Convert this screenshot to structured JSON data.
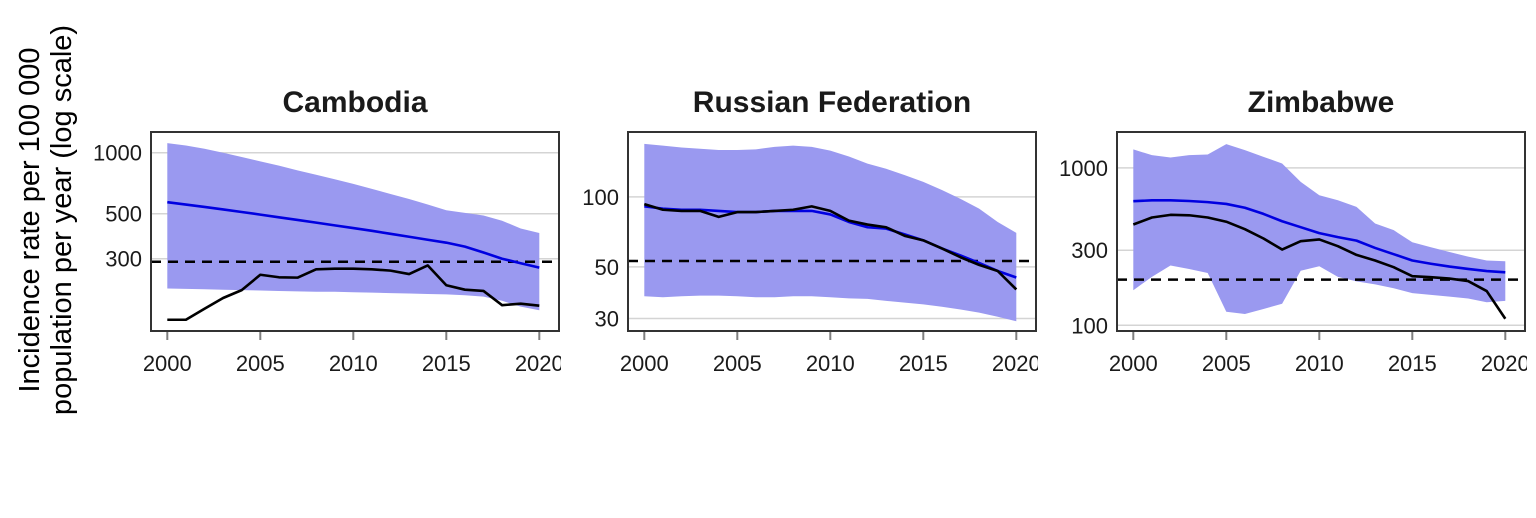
{
  "figure": {
    "y_axis_label_line1": "Incidence rate per 100 000",
    "y_axis_label_line2": "population per year (log scale)",
    "colors": {
      "confidence_band": "#9A99F0",
      "estimate_line": "#0000E0",
      "notification_line": "#000000",
      "target_line": "#000000",
      "gridline": "#D4D4D4",
      "panel_border": "#333333",
      "tick_mark": "#7F7F7F",
      "tick_text": "#1A1A1A"
    },
    "x_ticks": [
      2000,
      2005,
      2010,
      2015,
      2020
    ]
  },
  "chart_data": [
    {
      "type": "line",
      "title": "Cambodia",
      "scale": "log",
      "x": [
        2000,
        2001,
        2002,
        2003,
        2004,
        2005,
        2006,
        2007,
        2008,
        2009,
        2010,
        2011,
        2012,
        2013,
        2014,
        2015,
        2016,
        2017,
        2018,
        2019,
        2020
      ],
      "series": [
        {
          "name": "estimated_incidence",
          "style": "blue-line",
          "values": [
            570,
            555,
            540,
            525,
            510,
            495,
            480,
            466,
            452,
            438,
            425,
            412,
            398,
            385,
            372,
            360,
            344,
            322,
            300,
            285,
            271
          ]
        },
        {
          "name": "notifications",
          "style": "black-line",
          "values": [
            150,
            150,
            170,
            192,
            210,
            250,
            243,
            242,
            266,
            268,
            268,
            266,
            262,
            252,
            278,
            222,
            211,
            208,
            177,
            180,
            176
          ]
        },
        {
          "name": "ci_upper",
          "style": "band-edge",
          "values": [
            1115,
            1085,
            1046,
            1000,
            952,
            906,
            863,
            818,
            779,
            740,
            702,
            663,
            626,
            591,
            555,
            520,
            505,
            490,
            462,
            423,
            402
          ]
        },
        {
          "name": "ci_lower",
          "style": "band-edge",
          "values": [
            214,
            213,
            212,
            211,
            210,
            209,
            208,
            207,
            206,
            206,
            205,
            204,
            203,
            202,
            201,
            200,
            198,
            195,
            186,
            174,
            167
          ]
        }
      ],
      "target_dashed_value": 290,
      "y_ticks": [
        1000,
        500,
        300
      ],
      "ylim": [
        132,
        1265
      ],
      "xlim": [
        1999.12,
        2020.95
      ],
      "grid": true
    },
    {
      "type": "line",
      "title": "Russian Federation",
      "scale": "log",
      "x": [
        2000,
        2001,
        2002,
        2003,
        2004,
        2005,
        2006,
        2007,
        2008,
        2009,
        2010,
        2011,
        2012,
        2013,
        2014,
        2015,
        2016,
        2017,
        2018,
        2019,
        2020
      ],
      "series": [
        {
          "name": "estimated_incidence",
          "style": "blue-line",
          "values": [
            91,
            89,
            88,
            88,
            87,
            86,
            86,
            87,
            87,
            87,
            84,
            78,
            74,
            73,
            69,
            65,
            60,
            56,
            52,
            48,
            45
          ]
        },
        {
          "name": "notifications",
          "style": "black-line",
          "values": [
            93,
            88,
            87,
            87,
            82,
            86,
            86,
            87,
            88,
            91,
            87,
            79,
            76,
            74,
            68,
            65,
            60,
            55,
            51,
            48,
            40
          ]
        },
        {
          "name": "ci_upper",
          "style": "band-edge",
          "values": [
            169,
            166,
            163,
            161,
            159,
            159,
            160,
            164,
            166,
            164,
            158,
            149,
            139,
            132,
            124,
            116,
            107,
            98,
            89,
            78,
            70
          ]
        },
        {
          "name": "ci_lower",
          "style": "band-edge",
          "values": [
            37.4,
            37.0,
            37.4,
            37.6,
            37.6,
            37.4,
            37.0,
            37.0,
            37.4,
            37.4,
            37.0,
            36.6,
            36.4,
            35.7,
            35.1,
            34.5,
            33.7,
            32.8,
            31.8,
            30.5,
            29.2
          ]
        }
      ],
      "target_dashed_value": 53,
      "y_ticks": [
        100,
        50,
        30
      ],
      "ylim": [
        26.5,
        190
      ],
      "xlim": [
        1999.12,
        2020.95
      ],
      "grid": true
    },
    {
      "type": "line",
      "title": "Zimbabwe",
      "scale": "log",
      "x": [
        2000,
        2001,
        2002,
        2003,
        2004,
        2005,
        2006,
        2007,
        2008,
        2009,
        2010,
        2011,
        2012,
        2013,
        2014,
        2015,
        2016,
        2017,
        2018,
        2019,
        2020
      ],
      "series": [
        {
          "name": "estimated_incidence",
          "style": "blue-line",
          "values": [
            614,
            622,
            622,
            616,
            606,
            590,
            558,
            510,
            458,
            420,
            385,
            363,
            345,
            310,
            283,
            258,
            246,
            236,
            228,
            221,
            217
          ]
        },
        {
          "name": "notifications",
          "style": "black-line",
          "values": [
            437,
            484,
            503,
            500,
            484,
            455,
            408,
            356,
            303,
            342,
            351,
            318,
            280,
            258,
            234,
            205,
            202,
            198,
            191,
            165,
            110
          ]
        },
        {
          "name": "ci_upper",
          "style": "band-edge",
          "values": [
            1310,
            1204,
            1164,
            1204,
            1216,
            1415,
            1296,
            1175,
            1066,
            815,
            670,
            623,
            565,
            443,
            402,
            337,
            313,
            292,
            273,
            258,
            255
          ]
        },
        {
          "name": "ci_lower",
          "style": "band-edge",
          "values": [
            167,
            203,
            240,
            228,
            215,
            122,
            118,
            127,
            137,
            222,
            237,
            203,
            190,
            182,
            172,
            160,
            156,
            152,
            148,
            140,
            143
          ]
        }
      ],
      "target_dashed_value": 195,
      "y_ticks": [
        1000,
        300,
        100
      ],
      "ylim": [
        92,
        1690
      ],
      "xlim": [
        1999.12,
        2020.95
      ],
      "grid": true
    }
  ]
}
